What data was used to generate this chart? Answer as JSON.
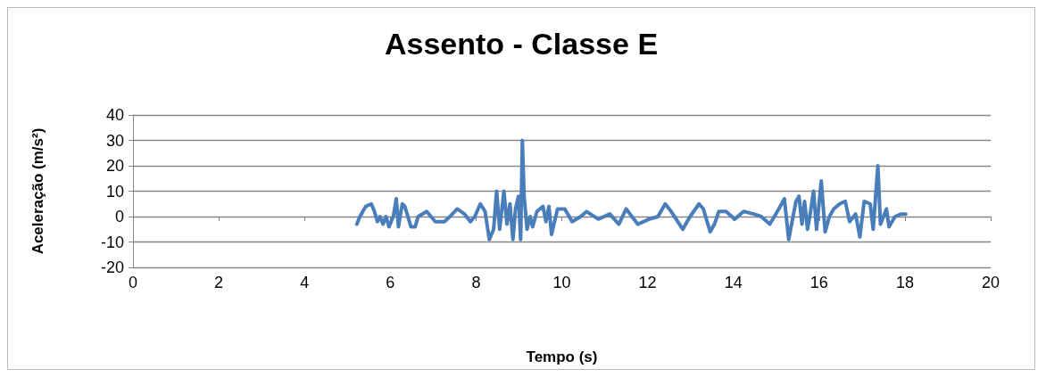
{
  "chart_data": {
    "type": "line",
    "title": "Assento - Classe E",
    "xlabel": "Tempo (s)",
    "ylabel": "Aceleração (m/s²)",
    "xlim": [
      0,
      20
    ],
    "xticks": [
      0,
      2,
      4,
      6,
      8,
      10,
      12,
      14,
      16,
      18,
      20
    ],
    "ylim": [
      -20,
      40
    ],
    "yticks": [
      -20,
      -10,
      0,
      10,
      20,
      30,
      40
    ],
    "grid": "y",
    "marker": "none",
    "line_style": "solid",
    "series": [
      {
        "color": "#4a7ebb",
        "x": [
          5.22,
          5.29,
          5.43,
          5.56,
          5.63,
          5.7,
          5.76,
          5.83,
          5.9,
          5.97,
          6.07,
          6.14,
          6.19,
          6.28,
          6.34,
          6.41,
          6.48,
          6.58,
          6.65,
          6.85,
          7.05,
          7.26,
          7.39,
          7.56,
          7.73,
          7.87,
          7.97,
          8.1,
          8.21,
          8.31,
          8.41,
          8.48,
          8.55,
          8.65,
          8.72,
          8.79,
          8.86,
          8.92,
          8.99,
          9.04,
          9.08,
          9.12,
          9.19,
          9.26,
          9.32,
          9.42,
          9.56,
          9.63,
          9.7,
          9.76,
          9.9,
          10.07,
          10.24,
          10.44,
          10.58,
          10.85,
          11.12,
          11.33,
          11.5,
          11.77,
          12.04,
          12.24,
          12.41,
          12.55,
          12.82,
          12.99,
          13.2,
          13.3,
          13.46,
          13.56,
          13.66,
          13.83,
          14.03,
          14.24,
          14.48,
          14.65,
          14.85,
          15.06,
          15.19,
          15.29,
          15.46,
          15.53,
          15.6,
          15.66,
          15.73,
          15.8,
          15.87,
          15.94,
          16.05,
          16.14,
          16.24,
          16.34,
          16.48,
          16.61,
          16.71,
          16.85,
          16.95,
          17.05,
          17.19,
          17.26,
          17.37,
          17.43,
          17.57,
          17.63,
          17.77,
          17.91,
          18.02
        ],
        "values": [
          -3,
          0,
          4,
          5,
          2,
          -2,
          0,
          -3,
          0,
          -4,
          0,
          7,
          -4,
          5,
          4,
          0,
          -4,
          -4,
          0,
          2,
          -2,
          -2,
          0,
          3,
          1,
          -2,
          0,
          5,
          2,
          -9,
          -5,
          10,
          -5,
          10,
          -3,
          5,
          -9,
          3,
          8,
          -9,
          30,
          8,
          -5,
          0,
          -4,
          2,
          4,
          -2,
          4,
          -7,
          3,
          3,
          -2,
          0,
          2,
          -1,
          1,
          -3,
          3,
          -3,
          -1,
          0,
          5,
          2,
          -5,
          0,
          5,
          3,
          -6,
          -3,
          2,
          2,
          -1,
          2,
          1,
          0,
          -3,
          3,
          7,
          -9,
          6,
          8,
          -3,
          6,
          -5,
          2,
          10,
          -5,
          14,
          -6,
          0,
          3,
          5,
          6,
          -2,
          1,
          -8,
          6,
          5,
          -5,
          20,
          -3,
          3,
          -4,
          0,
          1,
          1
        ]
      }
    ]
  }
}
